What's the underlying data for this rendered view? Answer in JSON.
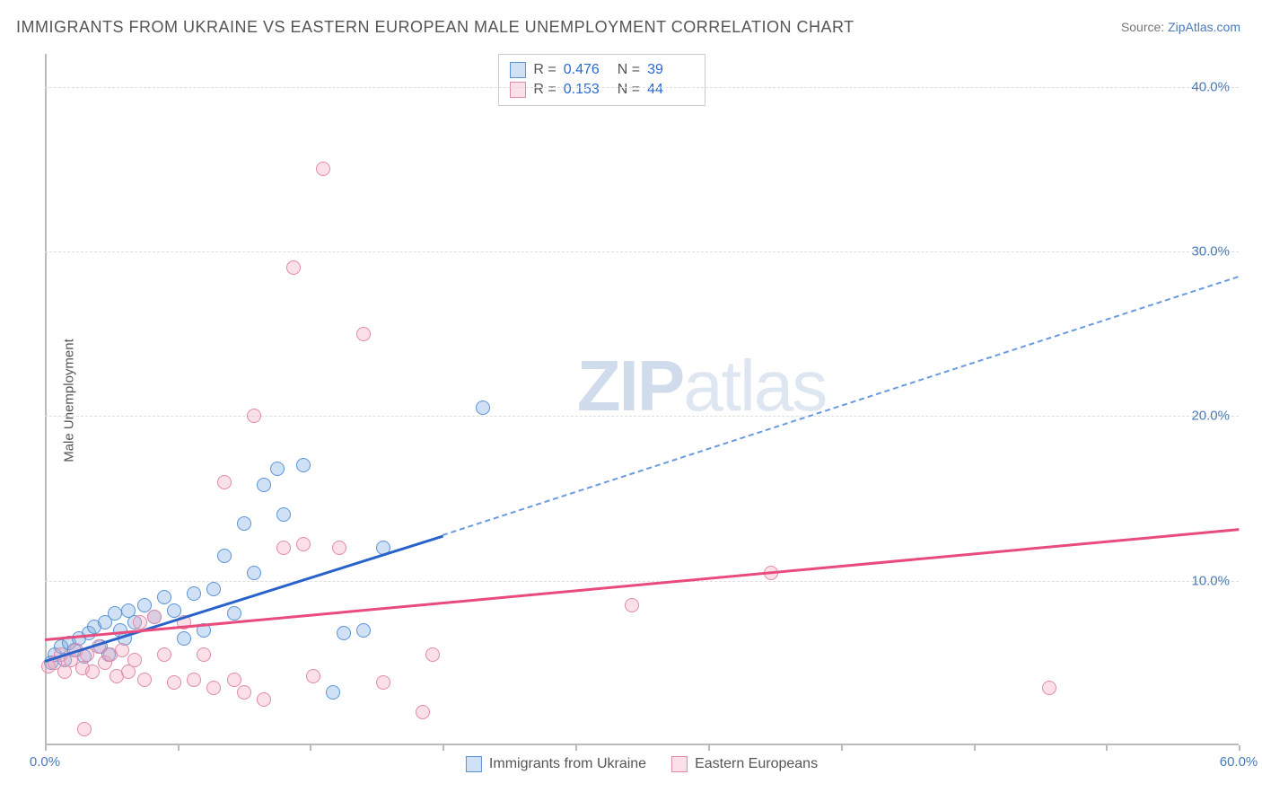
{
  "title": "IMMIGRANTS FROM UKRAINE VS EASTERN EUROPEAN MALE UNEMPLOYMENT CORRELATION CHART",
  "source_prefix": "Source: ",
  "source_link": "ZipAtlas.com",
  "ylabel": "Male Unemployment",
  "watermark_bold": "ZIP",
  "watermark_light": "atlas",
  "chart": {
    "type": "scatter",
    "xlim": [
      0,
      60
    ],
    "ylim": [
      0,
      42
    ],
    "yticks": [
      10,
      20,
      30,
      40
    ],
    "ytick_labels": [
      "10.0%",
      "20.0%",
      "30.0%",
      "40.0%"
    ],
    "xticks": [
      0,
      6.67,
      13.33,
      20,
      26.67,
      33.33,
      40,
      46.67,
      53.33,
      60
    ],
    "x_origin_label": "0.0%",
    "x_end_label": "60.0%",
    "background_color": "#ffffff",
    "grid_color": "#dddddd",
    "axis_color": "#bbbbbb",
    "point_radius": 8,
    "point_border_width": 1.5,
    "series": [
      {
        "name": "Immigrants from Ukraine",
        "color_fill": "rgba(121,169,226,0.35)",
        "color_border": "#5a93d6",
        "R": "0.476",
        "N": "39",
        "trend": {
          "x1": 0,
          "y1": 5.2,
          "x2_solid": 20,
          "y2_solid": 12.8,
          "x2_dash": 60,
          "y2_dash": 28.5,
          "solid_color": "#2962c9",
          "dash_color": "#6a9ae0"
        },
        "points": [
          [
            0.3,
            5.0
          ],
          [
            0.5,
            5.5
          ],
          [
            0.8,
            6.0
          ],
          [
            1.0,
            5.2
          ],
          [
            1.2,
            6.2
          ],
          [
            1.5,
            5.8
          ],
          [
            1.7,
            6.5
          ],
          [
            2.0,
            5.4
          ],
          [
            2.2,
            6.8
          ],
          [
            2.5,
            7.2
          ],
          [
            2.8,
            6.0
          ],
          [
            3.0,
            7.5
          ],
          [
            3.2,
            5.5
          ],
          [
            3.5,
            8.0
          ],
          [
            3.8,
            7.0
          ],
          [
            4.0,
            6.5
          ],
          [
            4.2,
            8.2
          ],
          [
            4.5,
            7.5
          ],
          [
            5.0,
            8.5
          ],
          [
            5.5,
            7.8
          ],
          [
            6.0,
            9.0
          ],
          [
            6.5,
            8.2
          ],
          [
            7.0,
            6.5
          ],
          [
            7.5,
            9.2
          ],
          [
            8.0,
            7.0
          ],
          [
            8.5,
            9.5
          ],
          [
            9.0,
            11.5
          ],
          [
            9.5,
            8.0
          ],
          [
            10.0,
            13.5
          ],
          [
            10.5,
            10.5
          ],
          [
            11.0,
            15.8
          ],
          [
            11.7,
            16.8
          ],
          [
            12.0,
            14.0
          ],
          [
            13.0,
            17.0
          ],
          [
            14.5,
            3.2
          ],
          [
            15.0,
            6.8
          ],
          [
            16.0,
            7.0
          ],
          [
            17.0,
            12.0
          ],
          [
            22.0,
            20.5
          ]
        ]
      },
      {
        "name": "Eastern Europeans",
        "color_fill": "rgba(243,166,188,0.35)",
        "color_border": "#e08aa8",
        "R": "0.153",
        "N": "44",
        "trend": {
          "x1": 0,
          "y1": 6.5,
          "x2_solid": 60,
          "y2_solid": 13.2,
          "solid_color": "#e94b7d"
        },
        "points": [
          [
            0.2,
            4.8
          ],
          [
            0.5,
            5.0
          ],
          [
            0.8,
            5.5
          ],
          [
            1.0,
            4.5
          ],
          [
            1.3,
            5.2
          ],
          [
            1.6,
            5.8
          ],
          [
            1.9,
            4.7
          ],
          [
            2.1,
            5.5
          ],
          [
            2.4,
            4.5
          ],
          [
            2.7,
            6.0
          ],
          [
            3.0,
            5.0
          ],
          [
            3.3,
            5.5
          ],
          [
            3.6,
            4.2
          ],
          [
            3.9,
            5.8
          ],
          [
            4.2,
            4.5
          ],
          [
            4.5,
            5.2
          ],
          [
            4.8,
            7.5
          ],
          [
            5.0,
            4.0
          ],
          [
            5.5,
            7.8
          ],
          [
            6.0,
            5.5
          ],
          [
            6.5,
            3.8
          ],
          [
            7.0,
            7.5
          ],
          [
            7.5,
            4.0
          ],
          [
            8.0,
            5.5
          ],
          [
            8.5,
            3.5
          ],
          [
            9.0,
            16.0
          ],
          [
            9.5,
            4.0
          ],
          [
            10.0,
            3.2
          ],
          [
            10.5,
            20.0
          ],
          [
            11.0,
            2.8
          ],
          [
            12.0,
            12.0
          ],
          [
            12.5,
            29.0
          ],
          [
            13.0,
            12.2
          ],
          [
            13.5,
            4.2
          ],
          [
            14.0,
            35.0
          ],
          [
            14.8,
            12.0
          ],
          [
            16.0,
            25.0
          ],
          [
            17.0,
            3.8
          ],
          [
            19.0,
            2.0
          ],
          [
            19.5,
            5.5
          ],
          [
            29.5,
            8.5
          ],
          [
            36.5,
            10.5
          ],
          [
            50.5,
            3.5
          ],
          [
            2.0,
            1.0
          ]
        ]
      }
    ]
  },
  "legend_stats": {
    "r_label": "R =",
    "n_label": "N ="
  },
  "bottom_legend": {
    "items": [
      "Immigrants from Ukraine",
      "Eastern Europeans"
    ]
  }
}
